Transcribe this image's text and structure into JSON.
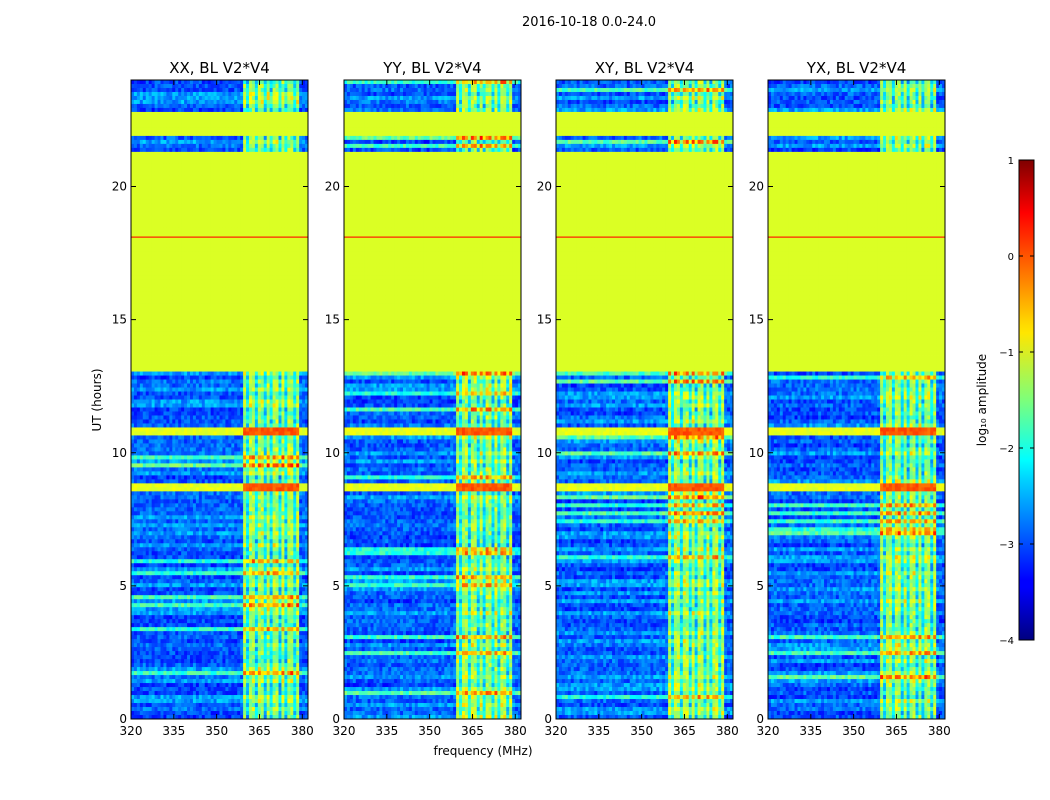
{
  "chart_data": {
    "type": "heatmap",
    "title": "2016-10-18 0.0-24.0",
    "xlabel": "frequency (MHz)",
    "ylabel": "UT (hours)",
    "xlim": [
      320,
      382
    ],
    "ylim": [
      0,
      24
    ],
    "xticks": [
      320,
      335,
      350,
      365,
      380
    ],
    "yticks": [
      0,
      5,
      10,
      15,
      20
    ],
    "panels": [
      {
        "name": "XX",
        "title": "XX, BL V2*V4"
      },
      {
        "name": "YY",
        "title": "YY, BL V2*V4"
      },
      {
        "name": "XY",
        "title": "XY, BL V2*V4"
      },
      {
        "name": "YX",
        "title": "YX, BL V2*V4"
      }
    ],
    "colorbar": {
      "label": "log₁₀ amplitude",
      "range": [
        -4,
        1
      ],
      "ticks": [
        "1",
        "0",
        "−1",
        "−2",
        "−3",
        "−4"
      ],
      "colormap": "jet"
    },
    "features": {
      "flagged_block_hours": [
        [
          13.1,
          21.3
        ],
        [
          21.9,
          22.8
        ]
      ],
      "flag_fill_log_amplitude": -1.05,
      "rfi_band_mhz": [
        359.5,
        379
      ],
      "rfi_channels_mhz": [
        359.5,
        362.5,
        365.5,
        368,
        370.5,
        373,
        376,
        378.5
      ],
      "narrow_line_hours": [
        18.1
      ],
      "bright_bands_hours": [
        [
          8.55,
          8.8
        ],
        [
          10.6,
          10.9
        ]
      ],
      "bright_band_log_amplitude": -0.2
    }
  }
}
